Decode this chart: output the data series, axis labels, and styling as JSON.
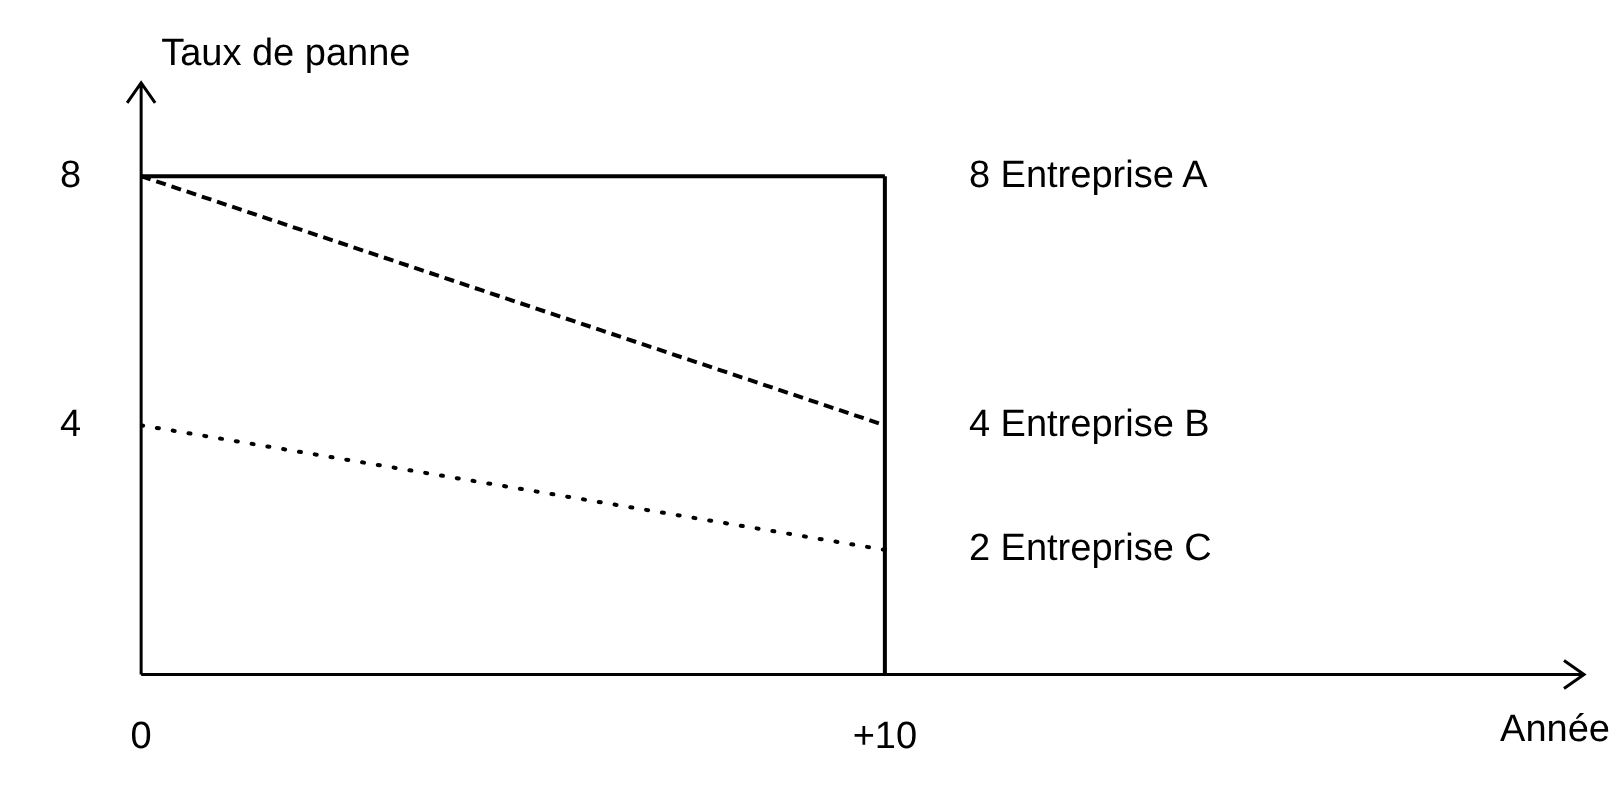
{
  "chart_data": {
    "type": "line",
    "xlabel": "Année",
    "ylabel": "Taux de panne",
    "x": [
      0,
      10
    ],
    "xlim": [
      0,
      19.4
    ],
    "ylim": [
      0,
      9.5
    ],
    "xticks": [
      0,
      {
        "value": 10,
        "label": "+10"
      }
    ],
    "yticks": [
      4,
      8
    ],
    "series": [
      {
        "name": "Entreprise A",
        "color": "#000000",
        "line_style": "solid",
        "values": [
          8,
          8
        ],
        "value_labels": [
          null,
          "8"
        ]
      },
      {
        "name": "Entreprise B",
        "color": "#000000",
        "line_style": "dashed",
        "values": [
          8,
          4
        ],
        "value_labels": [
          null,
          "4"
        ]
      },
      {
        "name": "Entreprise C",
        "color": "#000000",
        "line_style": "dotted",
        "values": [
          4,
          2
        ],
        "value_labels": [
          null,
          "2"
        ]
      }
    ],
    "ref_lines": [
      {
        "axis": "x",
        "value": 10,
        "color": "#000000"
      }
    ],
    "marker": "none",
    "grid": false,
    "legend": false
  }
}
